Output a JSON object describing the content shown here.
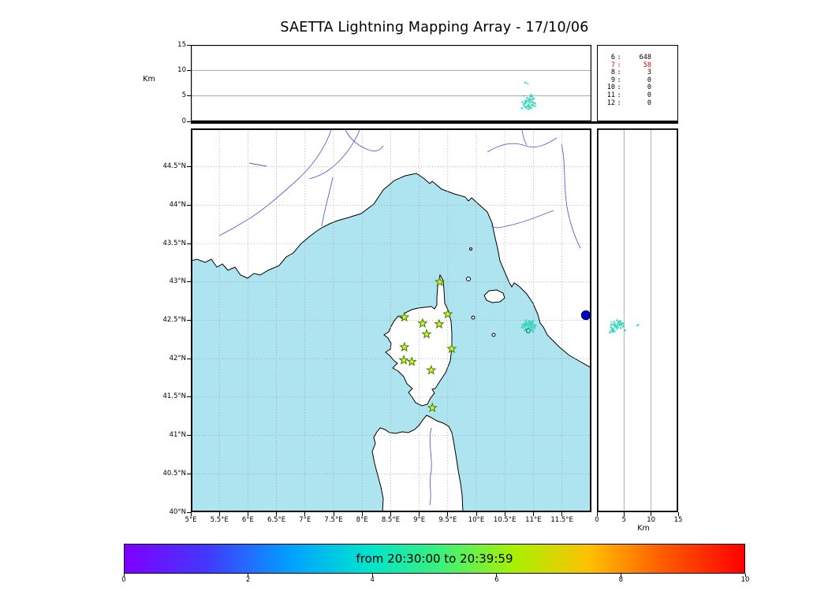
{
  "title": "SAETTA Lightning Mapping Array - 17/10/06",
  "top_axis": {
    "unit_label": "Km",
    "ticks": [
      {
        "label": "0",
        "value": 0
      },
      {
        "label": "5",
        "value": 5
      },
      {
        "label": "10",
        "value": 10
      },
      {
        "label": "15",
        "value": 15
      }
    ]
  },
  "right_axis": {
    "unit_label": "Km",
    "ticks": [
      {
        "label": "0",
        "value": 0
      },
      {
        "label": "5",
        "value": 5
      },
      {
        "label": "10",
        "value": 10
      },
      {
        "label": "15",
        "value": 15
      }
    ]
  },
  "stats": {
    "rows": [
      {
        "id": "6",
        "count": "648",
        "color": "#000000"
      },
      {
        "id": "7",
        "count": "58",
        "color": "#ee0000"
      },
      {
        "id": "8",
        "count": "3",
        "color": "#000000"
      },
      {
        "id": "9",
        "count": "0",
        "color": "#000000"
      },
      {
        "id": "10",
        "count": "0",
        "color": "#000000"
      },
      {
        "id": "11",
        "count": "0",
        "color": "#000000"
      },
      {
        "id": "12",
        "count": "0",
        "color": "#000000"
      }
    ]
  },
  "map_axis": {
    "lat_ticks": [
      {
        "label": "44.5°N",
        "value": 44.5
      },
      {
        "label": "44°N",
        "value": 44
      },
      {
        "label": "43.5°N",
        "value": 43.5
      },
      {
        "label": "43°N",
        "value": 43
      },
      {
        "label": "42.5°N",
        "value": 42.5
      },
      {
        "label": "42°N",
        "value": 42
      },
      {
        "label": "41.5°N",
        "value": 41.5
      },
      {
        "label": "41°N",
        "value": 41
      },
      {
        "label": "40.5°N",
        "value": 40.5
      },
      {
        "label": "40°N",
        "value": 40
      }
    ],
    "lon_ticks": [
      {
        "label": "5°E",
        "value": 5
      },
      {
        "label": "5.5°E",
        "value": 5.5
      },
      {
        "label": "6°E",
        "value": 6
      },
      {
        "label": "6.5°E",
        "value": 6.5
      },
      {
        "label": "7°E",
        "value": 7
      },
      {
        "label": "7.5°E",
        "value": 7.5
      },
      {
        "label": "8°E",
        "value": 8
      },
      {
        "label": "8.5°E",
        "value": 8.5
      },
      {
        "label": "9°E",
        "value": 9
      },
      {
        "label": "9.5°E",
        "value": 9.5
      },
      {
        "label": "10°E",
        "value": 10
      },
      {
        "label": "10.5°E",
        "value": 10.5
      },
      {
        "label": "11°E",
        "value": 11
      },
      {
        "label": "11.5°E",
        "value": 11.5
      }
    ]
  },
  "colorbar": {
    "label": "from 20:30:00 to 20:39:59",
    "ticks": [
      {
        "label": "0",
        "value": 0
      },
      {
        "label": "2",
        "value": 2
      },
      {
        "label": "4",
        "value": 4
      },
      {
        "label": "6",
        "value": 6
      },
      {
        "label": "8",
        "value": 8
      },
      {
        "label": "10",
        "value": 10
      }
    ],
    "gradient": [
      "#7f00ff 0%",
      "#4436ff 13%",
      "#00a2ff 27%",
      "#00e2cf 39%",
      "#3cf07c 51%",
      "#aaf000 63%",
      "#ffc000 75%",
      "#ff5a00 87%",
      "#ff0000 100%"
    ]
  },
  "style": {
    "sea": "#aee4ef",
    "river": "#5b5fd0",
    "grid_dotted": "#9a9a9a",
    "grid_solid": "#9a9a9a",
    "source_color": "#2fd3b8",
    "station_fill": "#c8f53c",
    "station_stroke": "#4a7a00",
    "lake_fill": "#0000bb"
  },
  "chart_data": {
    "type": "scatter",
    "title": "SAETTA Lightning Mapping Array - 17/10/06",
    "time_label": "from 20:30:00 to 20:39:59",
    "colorbar_range_minutes": [
      0,
      10
    ],
    "panels": [
      {
        "name": "altitude-vs-longitude",
        "x": "longitude_deg_E",
        "xlim": [
          5,
          12.02
        ],
        "y": "altitude_km",
        "ylim": [
          0,
          15
        ],
        "gridlines_y": [
          5,
          10
        ],
        "ylabel": "Km"
      },
      {
        "name": "map",
        "x": "longitude_deg_E",
        "xlim": [
          5,
          12.02
        ],
        "y": "latitude_deg_N",
        "ylim": [
          40,
          45
        ],
        "grid": "dotted every 0.5 deg"
      },
      {
        "name": "altitude-vs-latitude",
        "x": "altitude_km",
        "xlim": [
          0,
          15
        ],
        "y": "latitude_deg_N",
        "ylim": [
          40,
          45
        ],
        "gridlines_x": [
          5,
          10
        ],
        "xlabel": "Km"
      }
    ],
    "station_counts": [
      {
        "station": "6",
        "sources": 648
      },
      {
        "station": "7",
        "sources": 58
      },
      {
        "station": "8",
        "sources": 3
      },
      {
        "station": "9",
        "sources": 0
      },
      {
        "station": "10",
        "sources": 0
      },
      {
        "station": "11",
        "sources": 0
      },
      {
        "station": "12",
        "sources": 0
      }
    ],
    "station_markers_lonlat": [
      [
        9.36,
        43.0
      ],
      [
        8.74,
        42.54
      ],
      [
        9.06,
        42.46
      ],
      [
        9.35,
        42.45
      ],
      [
        9.5,
        42.58
      ],
      [
        9.13,
        42.32
      ],
      [
        8.74,
        42.15
      ],
      [
        9.57,
        42.13
      ],
      [
        8.73,
        41.98
      ],
      [
        8.87,
        41.96
      ],
      [
        9.21,
        41.85
      ],
      [
        9.23,
        41.36
      ]
    ],
    "sources_lon_lat_altkm": [
      [
        10.82,
        42.4,
        3.2
      ],
      [
        10.85,
        42.42,
        3.5
      ],
      [
        10.87,
        42.39,
        2.8
      ],
      [
        10.88,
        42.44,
        4.1
      ],
      [
        10.9,
        42.41,
        3.9
      ],
      [
        10.91,
        42.43,
        3.3
      ],
      [
        10.92,
        42.4,
        4.4
      ],
      [
        10.93,
        42.45,
        3.0
      ],
      [
        10.94,
        42.38,
        3.6
      ],
      [
        10.95,
        42.42,
        4.8
      ],
      [
        10.96,
        42.44,
        2.6
      ],
      [
        10.97,
        42.4,
        3.8
      ],
      [
        10.98,
        42.43,
        4.2
      ],
      [
        10.99,
        42.37,
        3.1
      ],
      [
        11.0,
        42.41,
        3.7
      ],
      [
        11.01,
        42.44,
        4.5
      ],
      [
        11.02,
        42.39,
        2.9
      ],
      [
        10.84,
        42.45,
        3.4
      ],
      [
        10.86,
        42.47,
        4.0
      ],
      [
        10.89,
        42.46,
        4.6
      ],
      [
        10.91,
        42.48,
        2.7
      ],
      [
        10.93,
        42.47,
        3.9
      ],
      [
        10.95,
        42.46,
        4.3
      ],
      [
        10.97,
        42.48,
        3.2
      ],
      [
        10.88,
        42.36,
        2.5
      ],
      [
        10.9,
        42.35,
        3.0
      ],
      [
        10.92,
        42.34,
        2.4
      ],
      [
        10.94,
        42.36,
        2.8
      ],
      [
        10.83,
        42.43,
        5.0
      ],
      [
        10.96,
        42.37,
        5.2
      ],
      [
        10.98,
        42.46,
        4.9
      ],
      [
        11.03,
        42.42,
        3.5
      ],
      [
        11.04,
        42.44,
        3.0
      ],
      [
        10.8,
        42.41,
        2.6
      ],
      [
        10.81,
        42.44,
        3.8
      ],
      [
        10.99,
        42.49,
        4.4
      ],
      [
        11.0,
        42.35,
        3.3
      ],
      [
        10.87,
        42.5,
        3.7
      ],
      [
        10.93,
        42.49,
        4.1
      ],
      [
        10.85,
        42.37,
        2.9
      ],
      [
        10.9,
        42.43,
        7.4
      ],
      [
        10.86,
        42.44,
        7.6
      ]
    ]
  }
}
